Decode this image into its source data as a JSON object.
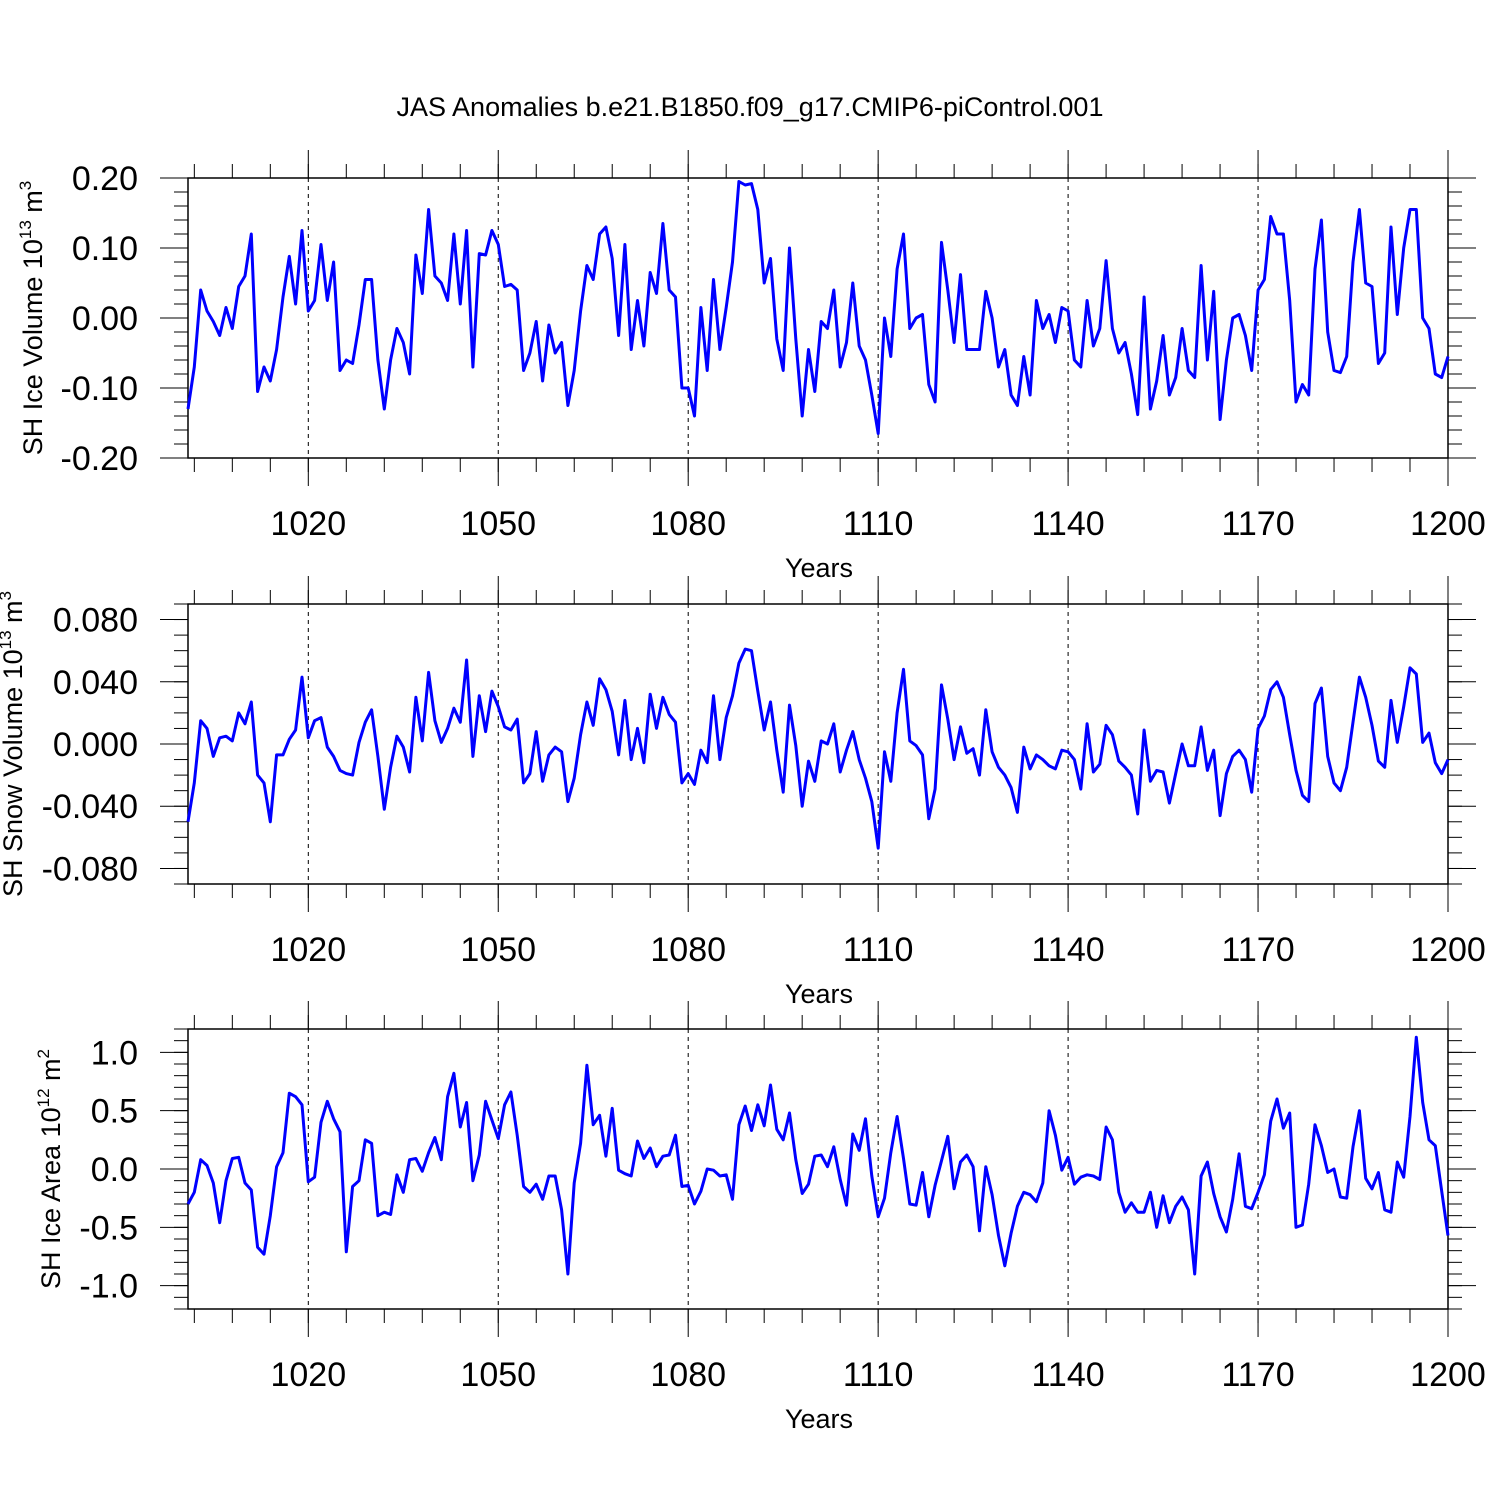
{
  "title": "JAS Anomalies b.e21.B1850.f09_g17.CMIP6-piControl.001",
  "colors": {
    "line": "#0000ff",
    "axis": "#000000",
    "background": "#ffffff"
  },
  "chart_data": [
    {
      "type": "line",
      "title": "JAS Anomalies b.e21.B1850.f09_g17.CMIP6-piControl.001",
      "ylabel": "SH Ice Volume 10",
      "ylabel_exp": "13",
      "ylabel_unit": " m",
      "ylabel_unit_exp": "3",
      "xlabel": "Years",
      "xlim": [
        1001,
        1200
      ],
      "ylim": [
        -0.2,
        0.2
      ],
      "yticks": [
        -0.2,
        -0.1,
        0.0,
        0.1,
        0.2
      ],
      "ytick_labels": [
        "-0.20",
        "-0.10",
        "0.00",
        "0.10",
        "0.20"
      ],
      "yminor_step": 0.02,
      "xticks": [
        1020,
        1050,
        1080,
        1110,
        1140,
        1170,
        1200
      ],
      "xtick_labels": [
        "1020",
        "1050",
        "1080",
        "1110",
        "1140",
        "1170",
        "1200"
      ],
      "xminor_step": 6,
      "grid_x": true,
      "x_start": 1001,
      "values": [
        -0.13,
        -0.07,
        0.04,
        0.01,
        -0.005,
        -0.025,
        0.015,
        -0.015,
        0.045,
        0.06,
        0.12,
        -0.105,
        -0.07,
        -0.09,
        -0.045,
        0.03,
        0.088,
        0.02,
        0.125,
        0.01,
        0.025,
        0.105,
        0.025,
        0.08,
        -0.075,
        -0.06,
        -0.065,
        -0.01,
        0.055,
        0.055,
        -0.06,
        -0.13,
        -0.06,
        -0.015,
        -0.035,
        -0.08,
        0.09,
        0.035,
        0.155,
        0.06,
        0.05,
        0.025,
        0.12,
        0.02,
        0.125,
        -0.07,
        0.092,
        0.09,
        0.125,
        0.105,
        0.045,
        0.048,
        0.04,
        -0.075,
        -0.05,
        -0.005,
        -0.09,
        -0.01,
        -0.05,
        -0.035,
        -0.125,
        -0.075,
        0.01,
        0.075,
        0.055,
        0.12,
        0.13,
        0.085,
        -0.025,
        0.105,
        -0.045,
        0.025,
        -0.04,
        0.065,
        0.035,
        0.135,
        0.04,
        0.03,
        -0.1,
        -0.1,
        -0.14,
        0.015,
        -0.075,
        0.055,
        -0.045,
        0.015,
        0.08,
        0.195,
        0.19,
        0.192,
        0.155,
        0.05,
        0.085,
        -0.03,
        -0.075,
        0.1,
        -0.03,
        -0.14,
        -0.045,
        -0.105,
        -0.005,
        -0.015,
        0.04,
        -0.07,
        -0.035,
        0.05,
        -0.04,
        -0.06,
        -0.11,
        -0.165,
        0.0,
        -0.055,
        0.07,
        0.12,
        -0.015,
        0.0,
        0.005,
        -0.095,
        -0.12,
        0.108,
        0.04,
        -0.035,
        0.062,
        -0.045,
        -0.045,
        -0.045,
        0.038,
        0.0,
        -0.07,
        -0.045,
        -0.11,
        -0.125,
        -0.055,
        -0.11,
        0.025,
        -0.015,
        0.005,
        -0.035,
        0.015,
        0.01,
        -0.06,
        -0.07,
        0.025,
        -0.04,
        -0.015,
        0.082,
        -0.015,
        -0.05,
        -0.035,
        -0.08,
        -0.138,
        0.03,
        -0.13,
        -0.09,
        -0.025,
        -0.11,
        -0.085,
        -0.015,
        -0.075,
        -0.085,
        0.075,
        -0.06,
        0.038,
        -0.145,
        -0.06,
        0.0,
        0.005,
        -0.025,
        -0.075,
        0.04,
        0.055,
        0.145,
        0.12,
        0.12,
        0.025,
        -0.12,
        -0.095,
        -0.11,
        0.07,
        0.14,
        -0.02,
        -0.075,
        -0.078,
        -0.055,
        0.08,
        0.155,
        0.05,
        0.045,
        -0.065,
        -0.05,
        0.13,
        0.005,
        0.1,
        0.155,
        0.155,
        0.0,
        -0.015,
        -0.08,
        -0.085,
        -0.055
      ]
    },
    {
      "type": "line",
      "ylabel": "SH Snow Volume 10",
      "ylabel_exp": "13",
      "ylabel_unit": " m",
      "ylabel_unit_exp": "3",
      "xlabel": "Years",
      "xlim": [
        1001,
        1200
      ],
      "ylim": [
        -0.09,
        0.09
      ],
      "yticks": [
        -0.08,
        -0.04,
        0.0,
        0.04,
        0.08
      ],
      "ytick_labels": [
        "-0.080",
        "-0.040",
        "0.000",
        "0.040",
        "0.080"
      ],
      "yminor_step": 0.01,
      "xticks": [
        1020,
        1050,
        1080,
        1110,
        1140,
        1170,
        1200
      ],
      "xtick_labels": [
        "1020",
        "1050",
        "1080",
        "1110",
        "1140",
        "1170",
        "1200"
      ],
      "xminor_step": 6,
      "grid_x": true,
      "x_start": 1001,
      "values": [
        -0.05,
        -0.025,
        0.015,
        0.01,
        -0.008,
        0.004,
        0.005,
        0.002,
        0.02,
        0.013,
        0.027,
        -0.02,
        -0.025,
        -0.05,
        -0.007,
        -0.007,
        0.003,
        0.009,
        0.043,
        0.004,
        0.015,
        0.017,
        -0.002,
        -0.008,
        -0.017,
        -0.019,
        -0.02,
        0.001,
        0.014,
        0.022,
        -0.008,
        -0.042,
        -0.015,
        0.005,
        -0.002,
        -0.018,
        0.03,
        0.002,
        0.046,
        0.015,
        0.001,
        0.01,
        0.023,
        0.014,
        0.054,
        -0.008,
        0.031,
        0.008,
        0.034,
        0.024,
        0.011,
        0.009,
        0.016,
        -0.025,
        -0.019,
        0.008,
        -0.024,
        -0.007,
        -0.002,
        -0.005,
        -0.037,
        -0.022,
        0.006,
        0.027,
        0.012,
        0.042,
        0.035,
        0.021,
        -0.007,
        0.028,
        -0.01,
        0.01,
        -0.012,
        0.032,
        0.01,
        0.03,
        0.019,
        0.014,
        -0.025,
        -0.019,
        -0.026,
        -0.004,
        -0.012,
        0.031,
        -0.01,
        0.017,
        0.031,
        0.052,
        0.061,
        0.06,
        0.034,
        0.009,
        0.027,
        -0.004,
        -0.031,
        0.025,
        -0.001,
        -0.04,
        -0.011,
        -0.024,
        0.002,
        0.0,
        0.013,
        -0.018,
        -0.004,
        0.008,
        -0.01,
        -0.022,
        -0.037,
        -0.067,
        -0.005,
        -0.024,
        0.02,
        0.048,
        0.002,
        -0.001,
        -0.007,
        -0.048,
        -0.029,
        0.038,
        0.016,
        -0.01,
        0.011,
        -0.006,
        -0.003,
        -0.02,
        0.022,
        -0.005,
        -0.015,
        -0.02,
        -0.028,
        -0.044,
        -0.002,
        -0.016,
        -0.007,
        -0.01,
        -0.014,
        -0.016,
        -0.004,
        -0.005,
        -0.01,
        -0.029,
        0.013,
        -0.018,
        -0.013,
        0.012,
        0.006,
        -0.011,
        -0.015,
        -0.02,
        -0.045,
        0.009,
        -0.024,
        -0.017,
        -0.018,
        -0.038,
        -0.019,
        0.0,
        -0.014,
        -0.014,
        0.011,
        -0.017,
        -0.004,
        -0.046,
        -0.019,
        -0.008,
        -0.004,
        -0.01,
        -0.031,
        0.01,
        0.018,
        0.035,
        0.04,
        0.03,
        0.006,
        -0.017,
        -0.033,
        -0.037,
        0.026,
        0.036,
        -0.008,
        -0.025,
        -0.03,
        -0.015,
        0.014,
        0.043,
        0.03,
        0.012,
        -0.011,
        -0.015,
        0.028,
        0.001,
        0.024,
        0.049,
        0.045,
        0.001,
        0.007,
        -0.012,
        -0.019,
        -0.01
      ]
    },
    {
      "type": "line",
      "ylabel": "SH Ice Area 10",
      "ylabel_exp": "12",
      "ylabel_unit": " m",
      "ylabel_unit_exp": "2",
      "xlabel": "Years",
      "xlim": [
        1001,
        1200
      ],
      "ylim": [
        -1.2,
        1.2
      ],
      "yticks": [
        -1.0,
        -0.5,
        0.0,
        0.5,
        1.0
      ],
      "ytick_labels": [
        "-1.0",
        "-0.5",
        "0.0",
        "0.5",
        "1.0"
      ],
      "yminor_step": 0.1,
      "xticks": [
        1020,
        1050,
        1080,
        1110,
        1140,
        1170,
        1200
      ],
      "xtick_labels": [
        "1020",
        "1050",
        "1080",
        "1110",
        "1140",
        "1170",
        "1200"
      ],
      "xminor_step": 6,
      "grid_x": true,
      "x_start": 1001,
      "values": [
        -0.3,
        -0.2,
        0.08,
        0.03,
        -0.12,
        -0.46,
        -0.1,
        0.09,
        0.1,
        -0.12,
        -0.18,
        -0.67,
        -0.73,
        -0.4,
        0.02,
        0.14,
        0.65,
        0.62,
        0.55,
        -0.11,
        -0.07,
        0.4,
        0.58,
        0.43,
        0.32,
        -0.71,
        -0.15,
        -0.1,
        0.25,
        0.22,
        -0.4,
        -0.37,
        -0.39,
        -0.05,
        -0.2,
        0.08,
        0.09,
        -0.02,
        0.14,
        0.27,
        0.08,
        0.62,
        0.82,
        0.36,
        0.57,
        -0.1,
        0.12,
        0.58,
        0.42,
        0.26,
        0.55,
        0.66,
        0.29,
        -0.15,
        -0.2,
        -0.13,
        -0.26,
        -0.06,
        -0.06,
        -0.35,
        -0.9,
        -0.12,
        0.22,
        0.89,
        0.38,
        0.46,
        0.11,
        0.52,
        -0.01,
        -0.04,
        -0.06,
        0.24,
        0.09,
        0.18,
        0.02,
        0.11,
        0.12,
        0.29,
        -0.15,
        -0.14,
        -0.3,
        -0.19,
        0.0,
        -0.01,
        -0.06,
        -0.05,
        -0.26,
        0.38,
        0.54,
        0.33,
        0.55,
        0.37,
        0.72,
        0.34,
        0.25,
        0.48,
        0.08,
        -0.21,
        -0.13,
        0.11,
        0.12,
        0.02,
        0.19,
        -0.09,
        -0.31,
        0.3,
        0.16,
        0.43,
        -0.06,
        -0.41,
        -0.25,
        0.14,
        0.45,
        0.09,
        -0.3,
        -0.31,
        -0.03,
        -0.41,
        -0.14,
        0.07,
        0.28,
        -0.17,
        0.06,
        0.12,
        0.02,
        -0.53,
        0.02,
        -0.22,
        -0.57,
        -0.83,
        -0.55,
        -0.32,
        -0.2,
        -0.22,
        -0.28,
        -0.12,
        0.5,
        0.29,
        -0.01,
        0.1,
        -0.13,
        -0.07,
        -0.05,
        -0.06,
        -0.09,
        0.36,
        0.25,
        -0.2,
        -0.37,
        -0.29,
        -0.37,
        -0.37,
        -0.2,
        -0.5,
        -0.23,
        -0.46,
        -0.32,
        -0.24,
        -0.35,
        -0.9,
        -0.06,
        0.06,
        -0.21,
        -0.41,
        -0.54,
        -0.26,
        0.13,
        -0.32,
        -0.34,
        -0.2,
        -0.05,
        0.41,
        0.6,
        0.35,
        0.48,
        -0.5,
        -0.48,
        -0.13,
        0.38,
        0.2,
        -0.03,
        0.0,
        -0.24,
        -0.25,
        0.19,
        0.5,
        -0.08,
        -0.17,
        -0.03,
        -0.35,
        -0.37,
        0.06,
        -0.07,
        0.45,
        1.13,
        0.57,
        0.25,
        0.2,
        -0.19,
        -0.57
      ]
    }
  ]
}
